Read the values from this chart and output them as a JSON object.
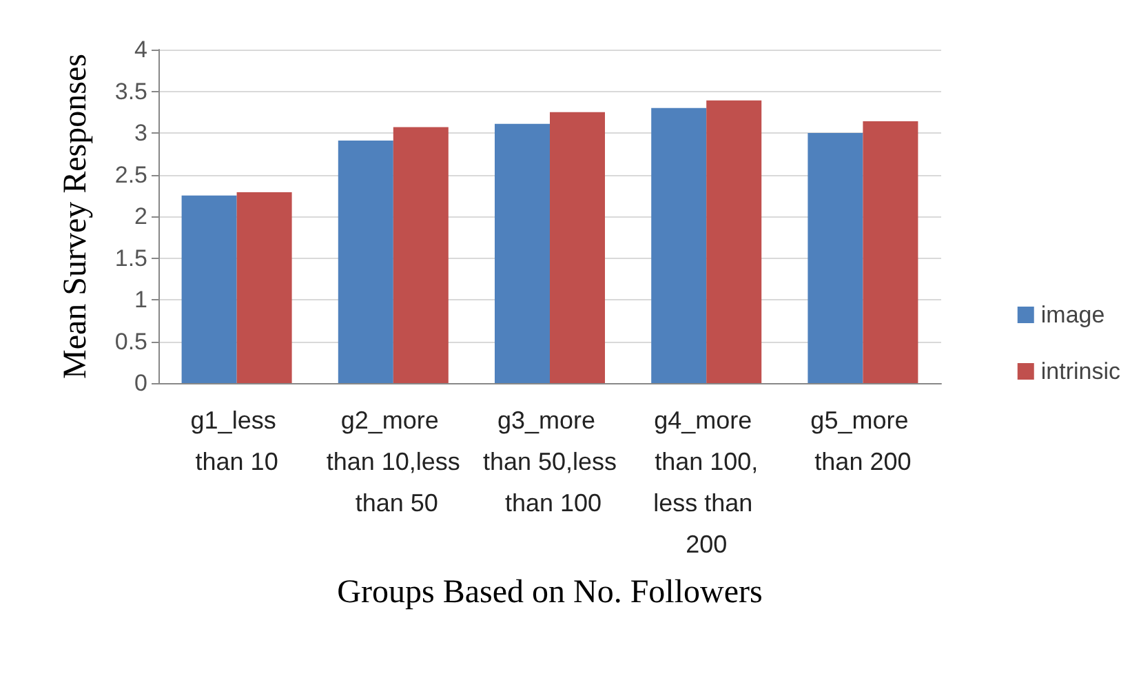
{
  "chart_data": {
    "type": "bar",
    "xlabel": "Groups Based on No. Followers",
    "ylabel": "Mean Survey Responses",
    "categories": [
      "g1_less than 10",
      "g2_more than 10,less than 50",
      "g3_more than 50,less than 100",
      "g4_more than 100,less than 200",
      "g5_more than 200"
    ],
    "series": [
      {
        "name": "image",
        "color": "#4f81bd",
        "values": [
          2.25,
          2.91,
          3.11,
          3.3,
          3.0
        ]
      },
      {
        "name": "intrinsic",
        "color": "#c0504d",
        "values": [
          2.29,
          3.07,
          3.25,
          3.39,
          3.14
        ]
      }
    ],
    "ylim": [
      0,
      4
    ],
    "yticks": [
      0,
      0.5,
      1,
      1.5,
      2,
      2.5,
      3,
      3.5,
      4
    ],
    "grid": "y",
    "legend": "right"
  }
}
